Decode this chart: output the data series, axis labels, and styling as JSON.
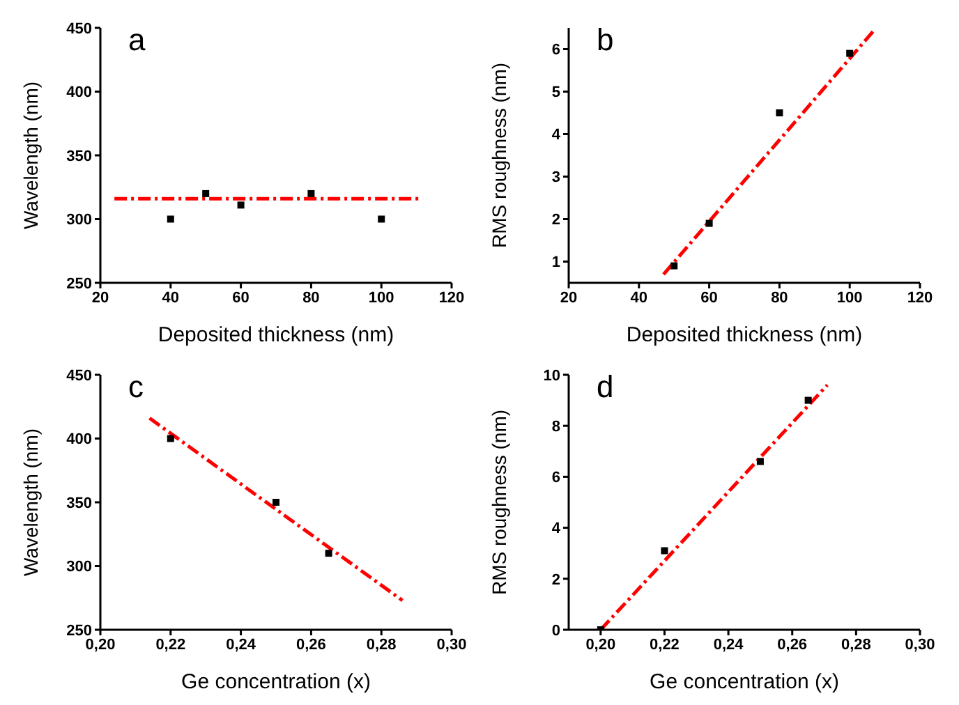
{
  "chart_data": [
    {
      "type": "scatter",
      "title": "a",
      "xlabel": "Deposited thickness (nm)",
      "ylabel": "Wavelength (nm)",
      "xlim": [
        20,
        120
      ],
      "xticks": [
        20,
        40,
        60,
        80,
        100,
        120
      ],
      "ylim": [
        250,
        450
      ],
      "yticks": [
        250,
        300,
        350,
        400,
        450
      ],
      "series": [
        {
          "color": "#000000",
          "marker": "square",
          "x": [
            40,
            50,
            60,
            80,
            100
          ],
          "values": [
            300,
            320,
            311,
            320,
            300
          ]
        },
        {
          "type": "line",
          "color": "#ff0000",
          "marker": "none",
          "line_style": "dashed",
          "x": [
            24,
            111
          ],
          "values": [
            316,
            316
          ]
        }
      ]
    },
    {
      "type": "scatter",
      "title": "b",
      "xlabel": "Deposited thickness (nm)",
      "ylabel": "RMS roughness (nm)",
      "xlim": [
        20,
        120
      ],
      "xticks": [
        20,
        40,
        60,
        80,
        100,
        120
      ],
      "ylim": [
        0.5,
        6.5
      ],
      "yticks": [
        1,
        2,
        3,
        4,
        5,
        6
      ],
      "series": [
        {
          "color": "#000000",
          "marker": "square",
          "x": [
            50,
            60,
            80,
            100
          ],
          "values": [
            0.9,
            1.9,
            4.5,
            5.9
          ]
        },
        {
          "type": "line",
          "color": "#ff0000",
          "marker": "none",
          "line_style": "dashed",
          "x": [
            47,
            107
          ],
          "values": [
            0.7,
            6.45
          ]
        }
      ]
    },
    {
      "type": "scatter",
      "title": "c",
      "xlabel": "Ge concentration (x)",
      "ylabel": "Wavelength (nm)",
      "xlim": [
        0.2,
        0.3
      ],
      "xticks": [
        {
          "value": 0.2,
          "label": "0,20"
        },
        {
          "value": 0.22,
          "label": "0,22"
        },
        {
          "value": 0.24,
          "label": "0,24"
        },
        {
          "value": 0.26,
          "label": "0,26"
        },
        {
          "value": 0.28,
          "label": "0,28"
        },
        {
          "value": 0.3,
          "label": "0,30"
        }
      ],
      "ylim": [
        250,
        450
      ],
      "yticks": [
        250,
        300,
        350,
        400,
        450
      ],
      "series": [
        {
          "color": "#000000",
          "marker": "square",
          "x": [
            0.22,
            0.25,
            0.265
          ],
          "values": [
            400,
            350,
            310
          ]
        },
        {
          "type": "line",
          "color": "#ff0000",
          "marker": "none",
          "line_style": "dashed",
          "x": [
            0.214,
            0.286
          ],
          "values": [
            416,
            273
          ]
        }
      ]
    },
    {
      "type": "scatter",
      "title": "d",
      "xlabel": "Ge concentration (x)",
      "ylabel": "RMS roughness (nm)",
      "xlim": [
        0.19,
        0.3
      ],
      "xticks": [
        {
          "value": 0.2,
          "label": "0,20"
        },
        {
          "value": 0.22,
          "label": "0,22"
        },
        {
          "value": 0.24,
          "label": "0,24"
        },
        {
          "value": 0.26,
          "label": "0,26"
        },
        {
          "value": 0.28,
          "label": "0,28"
        },
        {
          "value": 0.3,
          "label": "0,30"
        }
      ],
      "ylim": [
        0,
        10
      ],
      "yticks": [
        0,
        2,
        4,
        6,
        8,
        10
      ],
      "series": [
        {
          "color": "#000000",
          "marker": "square",
          "x": [
            0.2,
            0.22,
            0.25,
            0.265
          ],
          "values": [
            0,
            3.1,
            6.6,
            9.0
          ]
        },
        {
          "type": "line",
          "color": "#ff0000",
          "marker": "none",
          "line_style": "dashed",
          "x": [
            0.2,
            0.271
          ],
          "values": [
            0,
            9.6
          ]
        }
      ]
    }
  ]
}
